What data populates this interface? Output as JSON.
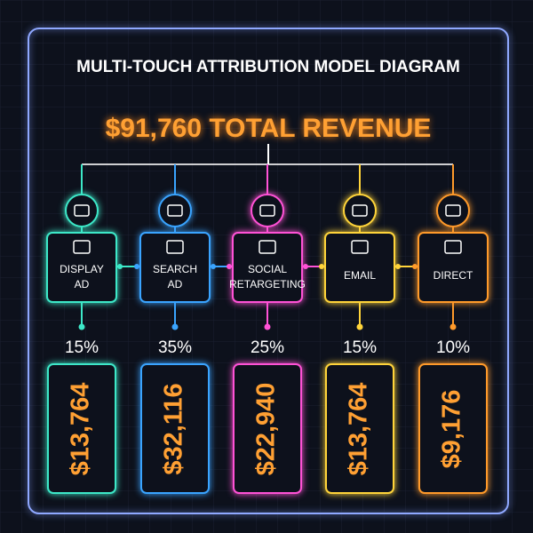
{
  "header": {
    "title": "MULTI-TOUCH ATTRIBUTION MODEL DIAGRAM",
    "total": "$91,760 TOTAL REVENUE"
  },
  "channels": [
    {
      "label": [
        "DISPLAY",
        "AD"
      ],
      "share": "15%",
      "amount": "$13,764"
    },
    {
      "label": [
        "SEARCH",
        "AD"
      ],
      "share": "35%",
      "amount": "$32,116"
    },
    {
      "label": [
        "SOCIAL",
        "RETARGETING"
      ],
      "share": "25%",
      "amount": "$22,940"
    },
    {
      "label": [
        "EMAIL"
      ],
      "share": "15%",
      "amount": "$13,764"
    },
    {
      "label": [
        "DIRECT"
      ],
      "share": "10%",
      "amount": "$9,176"
    }
  ]
}
